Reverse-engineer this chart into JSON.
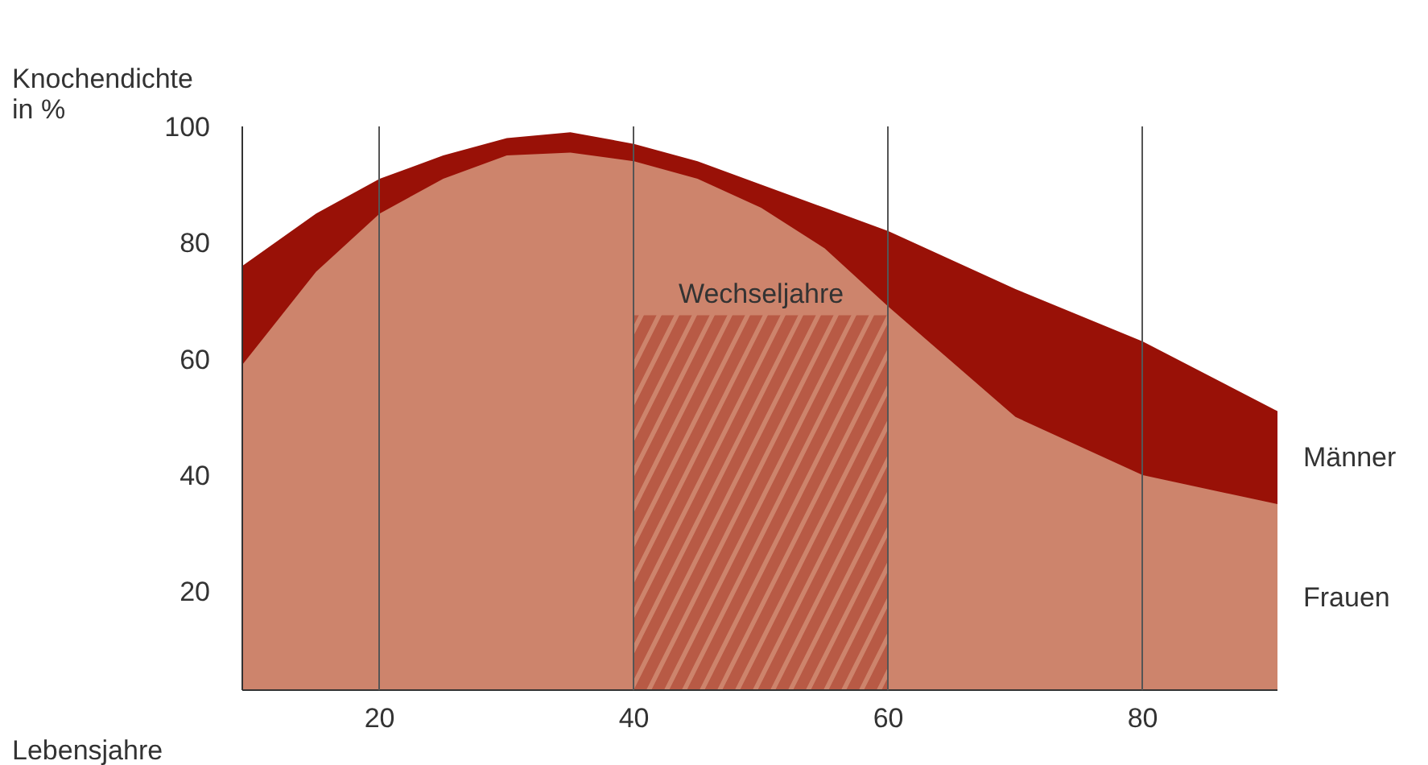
{
  "chart_data": {
    "type": "area",
    "ylabel": "Knochendichte in %",
    "xlabel": "Lebensjahre",
    "x": [
      9.2,
      15,
      20,
      25,
      30,
      35,
      40,
      45,
      50,
      55,
      60,
      70,
      80,
      90.6
    ],
    "series": [
      {
        "name": "Männer",
        "color": "#991107",
        "values": [
          76,
          85,
          91,
          95,
          98,
          99,
          97,
          94,
          90,
          86,
          82,
          72,
          63,
          51
        ]
      },
      {
        "name": "Frauen",
        "color": "#cd846c",
        "values": [
          59,
          75,
          85,
          91,
          95,
          95.5,
          94,
          91,
          86,
          79,
          69,
          50,
          40,
          35
        ]
      }
    ],
    "xlim": [
      9.2,
      90.6
    ],
    "ylim": [
      3,
      100
    ],
    "xticks": [
      20,
      40,
      60,
      80
    ],
    "yticks": [
      20,
      40,
      60,
      80,
      100
    ],
    "grid": "x",
    "bands": [
      {
        "axis": "x",
        "from": 40,
        "to": 60,
        "label": "Wechseljahre",
        "color": "#b85a45"
      }
    ]
  }
}
